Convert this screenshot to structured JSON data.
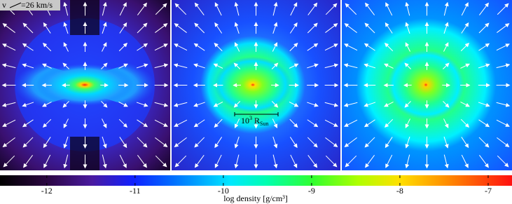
{
  "chart_data": {
    "type": "colorbar",
    "colorbar_label": "log density [g/cm³]",
    "clim": [
      -12.53,
      -6.73
    ],
    "cticks": [
      -12,
      -11,
      -10,
      -9,
      -8,
      -7
    ],
    "velocity_label": "v",
    "velocity_scale": "=26 km/s",
    "length_scale": {
      "value": "10",
      "exp": "3",
      "unit": "R",
      "sub": "Sun"
    }
  }
}
